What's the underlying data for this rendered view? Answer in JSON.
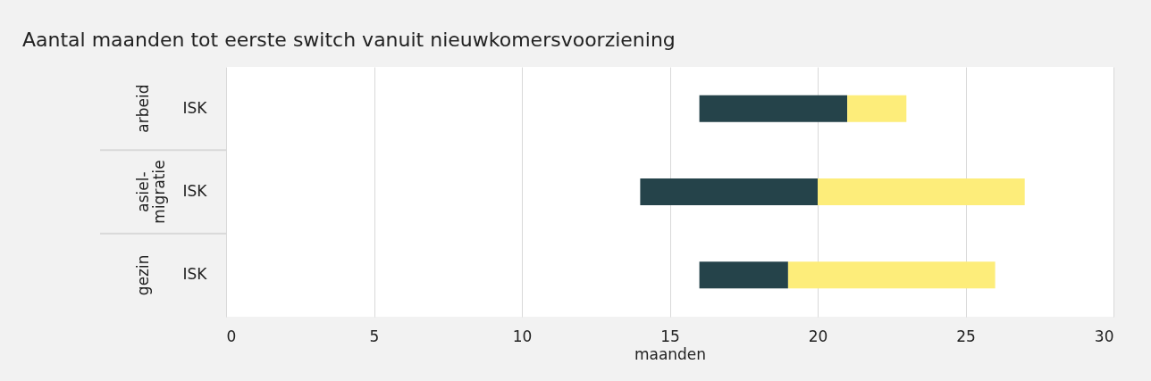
{
  "chart_data": {
    "type": "bar",
    "orientation": "horizontal",
    "title": "Aantal maanden tot eerste switch vanuit nieuwkomersvoorziening",
    "xlabel": "maanden",
    "categories": [
      "ISK",
      "ISK",
      "ISK"
    ],
    "annotations": [
      "arbeid",
      "asiel-migratie",
      "gezin"
    ],
    "series": [
      {
        "color": "#25434a",
        "base": [
          16,
          14,
          16
        ],
        "values": [
          5,
          6,
          3
        ]
      },
      {
        "color": "#fded7a",
        "base": [
          21,
          20,
          19
        ],
        "values": [
          2,
          7,
          7
        ]
      }
    ],
    "xlim": [
      0,
      30
    ],
    "xticks": [
      0,
      5,
      10,
      15,
      20,
      25,
      30
    ],
    "grid": "x"
  }
}
